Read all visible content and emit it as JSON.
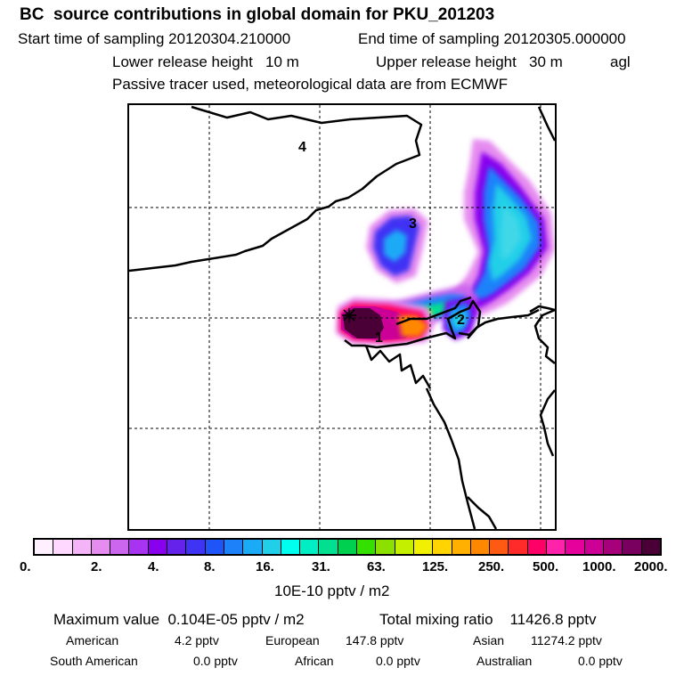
{
  "header": {
    "title": "BC  source contributions in global domain for PKU_201203",
    "start_label": "Start time of sampling 20120304.210000",
    "end_label": "End time of sampling 20120305.000000",
    "lower_release": "Lower release height   10 m",
    "upper_release": "Upper release height   30 m",
    "agl": "agl",
    "tracer_note": "Passive tracer used, meteorological data are from ECMWF"
  },
  "map": {
    "region_labels": [
      "1",
      "2",
      "3",
      "4"
    ],
    "receptor_marker": "release-site-marker"
  },
  "legend": {
    "swatch_colors": [
      "#fff0ff",
      "#ffd8ff",
      "#f4b4f8",
      "#e68cf0",
      "#cc66ee",
      "#a833f0",
      "#8800ee",
      "#6422ea",
      "#3f33f4",
      "#1f55f8",
      "#1d82fa",
      "#1aaaf6",
      "#22cfe8",
      "#00ffee",
      "#00eec4",
      "#00e090",
      "#00d050",
      "#33e000",
      "#8ce000",
      "#c4f000",
      "#f0f000",
      "#ffd400",
      "#ffb000",
      "#ff8800",
      "#ff5a14",
      "#ff2a2a",
      "#ff0066",
      "#ff22aa",
      "#e6009c",
      "#cc0096",
      "#a6007a",
      "#7a0060",
      "#4a0036"
    ],
    "tick_labels": [
      "0.",
      "2.",
      "4.",
      "8.",
      "16.",
      "31.",
      "63.",
      "125.",
      "250.",
      "500.",
      "1000.",
      "2000."
    ],
    "units": "10E-10 pptv / m2"
  },
  "stats": {
    "max_value": "Maximum value  0.104E-05 pptv / m2",
    "total_mixing": "Total mixing ratio    11426.8 pptv"
  },
  "sources": {
    "american_label": "American",
    "american_value": "4.2 pptv",
    "european_label": "European",
    "european_value": "147.8 pptv",
    "asian_label": "Asian",
    "asian_value": "11274.2 pptv",
    "south_american_label": "South American",
    "south_american_value": "0.0 pptv",
    "african_label": "African",
    "african_value": "0.0 pptv",
    "australian_label": "Australian",
    "australian_value": "0.0 pptv"
  }
}
